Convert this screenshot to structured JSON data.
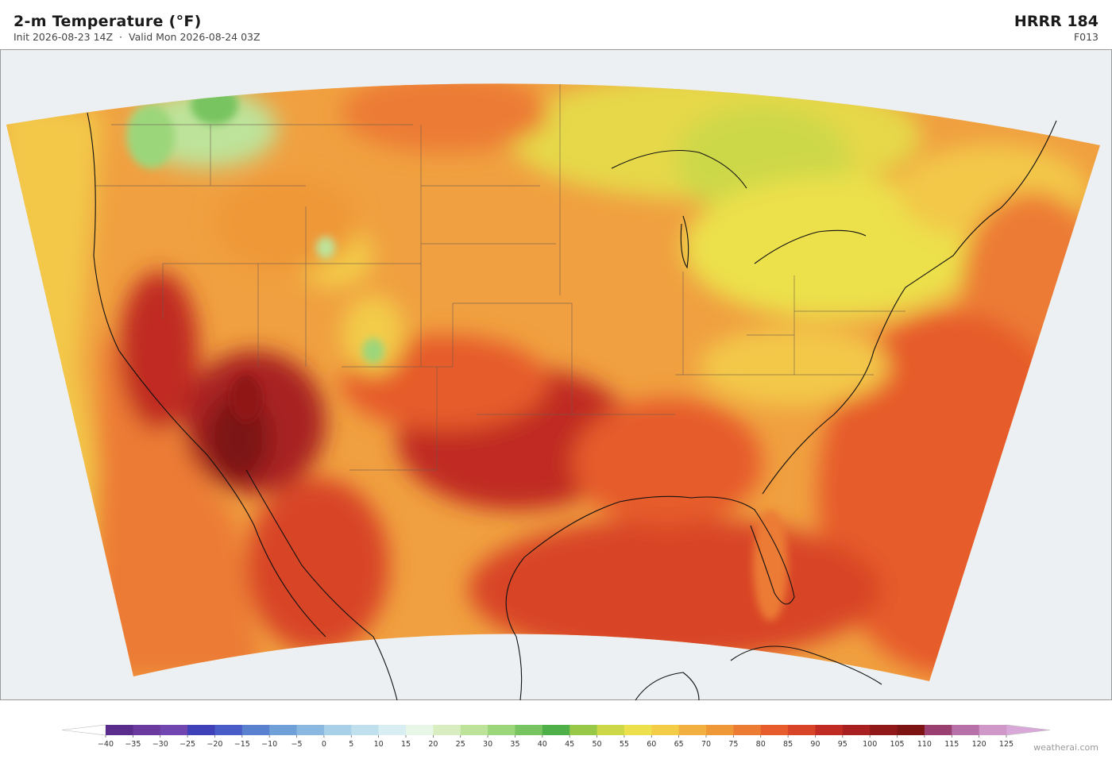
{
  "header": {
    "title": "2-m Temperature  (°F)",
    "init": "Init 2026-08-23 14Z",
    "separator": "·",
    "valid": "Valid Mon 2026-08-24 03Z",
    "model": "HRRR  184",
    "forecast_hour": "F013"
  },
  "colorbar": {
    "ticks": [
      {
        "value": -40,
        "label": "−40"
      },
      {
        "value": -35,
        "label": "−35"
      },
      {
        "value": -30,
        "label": "−30"
      },
      {
        "value": -25,
        "label": "−25"
      },
      {
        "value": -20,
        "label": "−20"
      },
      {
        "value": -15,
        "label": "−15"
      },
      {
        "value": -10,
        "label": "−10"
      },
      {
        "value": -5,
        "label": "−5"
      },
      0,
      5,
      10,
      15,
      20,
      25,
      30,
      35,
      40,
      45,
      50,
      55,
      60,
      65,
      70,
      75,
      80,
      85,
      90,
      95,
      100,
      105,
      110,
      115,
      120,
      125
    ],
    "colors": [
      "#5a2d8c",
      "#6a3a9e",
      "#7246b0",
      "#4040b8",
      "#4a5cc8",
      "#5a80d0",
      "#70a0d8",
      "#8ab8e0",
      "#a8d0e8",
      "#c0e0ee",
      "#d8eef2",
      "#e8f6e8",
      "#d8eec0",
      "#bde39a",
      "#9cd67a",
      "#78c460",
      "#4fb04a",
      "#98c848",
      "#cdd848",
      "#ece04c",
      "#f3cc48",
      "#f2b040",
      "#ef9838",
      "#ec7c34",
      "#e65c2c",
      "#d84428",
      "#c02c24",
      "#a82020",
      "#901818",
      "#7c1414",
      "#9a4070",
      "#b870a8",
      "#d098c8"
    ],
    "under_color": "#ffffff",
    "over_color": "#d8a8d8"
  },
  "watermark": "weatherai.com"
}
